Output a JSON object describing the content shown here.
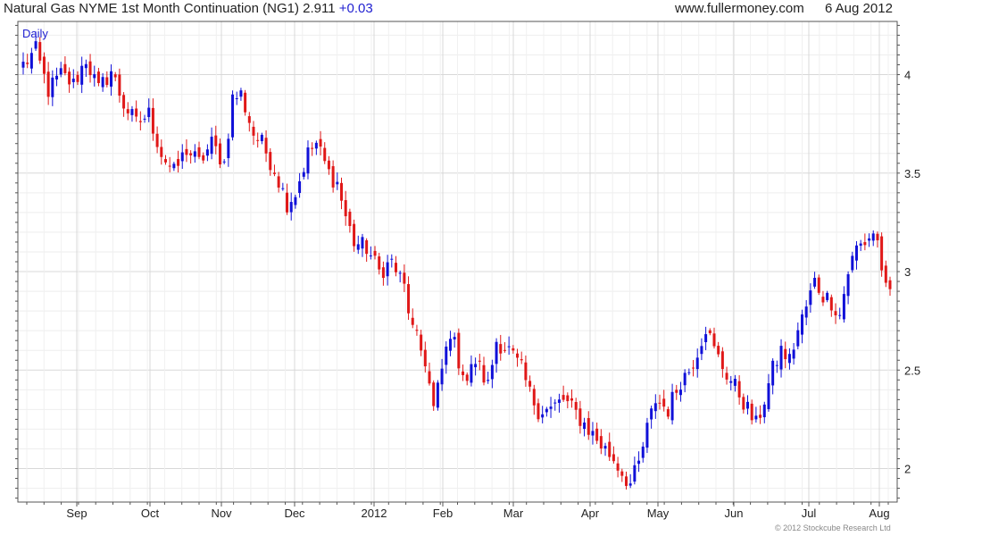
{
  "header": {
    "instrument": "Natural Gas NYME 1st Month Continuation (NG1)",
    "last": "2.911",
    "change": "+0.03",
    "site": "www.fullermoney.com",
    "date": "6 Aug 2012"
  },
  "footer": {
    "copyright": "© 2012 Stockcube Research Ltd"
  },
  "colors": {
    "up": "#1010d8",
    "down": "#e01818",
    "grid": "#d8d8d8",
    "frame": "#555555"
  },
  "chart_data": {
    "type": "candlestick",
    "period": "Daily",
    "ylim": [
      1.83,
      4.27
    ],
    "y_ticks": [
      2,
      2.5,
      3,
      3.5,
      4
    ],
    "y_tick_labels": [
      "2",
      "2.5",
      "3",
      "3.5",
      "4"
    ],
    "x_tick_labels": [
      "Sep",
      "Oct",
      "Nov",
      "Dec",
      "2012",
      "Feb",
      "Mar",
      "Apr",
      "May",
      "Jun",
      "Jul",
      "Aug"
    ],
    "grid": true,
    "anchors": [
      [
        0,
        4.05
      ],
      [
        3,
        4.12
      ],
      [
        6,
        3.92
      ],
      [
        9,
        4.0
      ],
      [
        12,
        3.95
      ],
      [
        15,
        4.08
      ],
      [
        18,
        3.92
      ],
      [
        21,
        4.02
      ],
      [
        24,
        3.85
      ],
      [
        27,
        3.75
      ],
      [
        30,
        3.8
      ],
      [
        33,
        3.6
      ],
      [
        36,
        3.5
      ],
      [
        39,
        3.62
      ],
      [
        42,
        3.55
      ],
      [
        45,
        3.65
      ],
      [
        48,
        3.55
      ],
      [
        50,
        3.88
      ],
      [
        52,
        3.9
      ],
      [
        55,
        3.7
      ],
      [
        57,
        3.65
      ],
      [
        60,
        3.52
      ],
      [
        63,
        3.35
      ],
      [
        65,
        3.4
      ],
      [
        68,
        3.6
      ],
      [
        70,
        3.65
      ],
      [
        73,
        3.5
      ],
      [
        75,
        3.45
      ],
      [
        77,
        3.28
      ],
      [
        79,
        3.15
      ],
      [
        82,
        3.12
      ],
      [
        85,
        3.0
      ],
      [
        88,
        3.05
      ],
      [
        91,
        2.92
      ],
      [
        93,
        2.7
      ],
      [
        96,
        2.55
      ],
      [
        98,
        2.3
      ],
      [
        100,
        2.5
      ],
      [
        102,
        2.7
      ],
      [
        104,
        2.55
      ],
      [
        106,
        2.45
      ],
      [
        108,
        2.55
      ],
      [
        111,
        2.42
      ],
      [
        113,
        2.65
      ],
      [
        116,
        2.6
      ],
      [
        119,
        2.5
      ],
      [
        121,
        2.38
      ],
      [
        123,
        2.3
      ],
      [
        126,
        2.3
      ],
      [
        129,
        2.35
      ],
      [
        132,
        2.28
      ],
      [
        135,
        2.2
      ],
      [
        138,
        2.12
      ],
      [
        141,
        2.05
      ],
      [
        143,
        1.98
      ],
      [
        145,
        1.92
      ],
      [
        147,
        2.02
      ],
      [
        149,
        2.2
      ],
      [
        151,
        2.35
      ],
      [
        154,
        2.3
      ],
      [
        157,
        2.45
      ],
      [
        159,
        2.5
      ],
      [
        161,
        2.6
      ],
      [
        163,
        2.72
      ],
      [
        165,
        2.6
      ],
      [
        168,
        2.48
      ],
      [
        171,
        2.38
      ],
      [
        173,
        2.3
      ],
      [
        175,
        2.22
      ],
      [
        177,
        2.35
      ],
      [
        179,
        2.5
      ],
      [
        181,
        2.6
      ],
      [
        183,
        2.55
      ],
      [
        185,
        2.7
      ],
      [
        187,
        2.82
      ],
      [
        189,
        2.95
      ],
      [
        191,
        2.88
      ],
      [
        193,
        2.85
      ],
      [
        195,
        2.78
      ],
      [
        197,
        3.0
      ],
      [
        199,
        3.12
      ],
      [
        201,
        3.15
      ],
      [
        203,
        3.2
      ],
      [
        204,
        3.15
      ],
      [
        206,
        2.9
      ],
      [
        207,
        2.9
      ]
    ],
    "last_close": 2.911
  }
}
